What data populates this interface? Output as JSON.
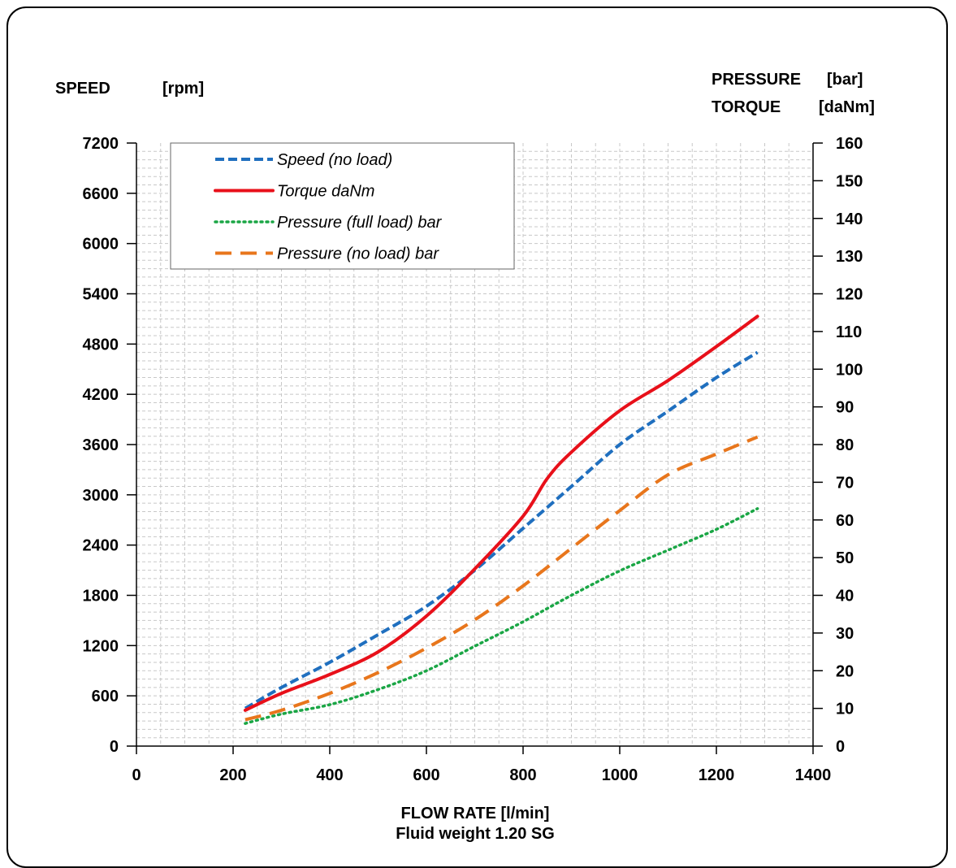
{
  "chart_data": {
    "type": "line",
    "left_axis": {
      "title": "SPEED",
      "unit": "[rpm]",
      "range": [
        0,
        7200
      ],
      "ticks": [
        0,
        600,
        1200,
        1800,
        2400,
        3000,
        3600,
        4200,
        4800,
        5400,
        6000,
        6600,
        7200
      ]
    },
    "right_axis": {
      "title_line1": "PRESSURE",
      "unit_line1": "[bar]",
      "title_line2": "TORQUE",
      "unit_line2": "[daNm]",
      "range": [
        0,
        160
      ],
      "ticks": [
        0,
        10,
        20,
        30,
        40,
        50,
        60,
        70,
        80,
        90,
        100,
        110,
        120,
        130,
        140,
        150,
        160
      ]
    },
    "x_axis": {
      "title": "FLOW RATE [l/min]",
      "subtitle": "Fluid weight  1.20  SG",
      "range": [
        0,
        1400
      ],
      "ticks": [
        0,
        200,
        400,
        600,
        800,
        1000,
        1200,
        1400
      ]
    },
    "grid": true,
    "legend_position": "top-left",
    "series": [
      {
        "name": "Speed (no load)",
        "axis": "left",
        "color": "#1f6fbf",
        "style": "dashed",
        "x": [
          225,
          300,
          400,
          500,
          600,
          700,
          800,
          900,
          1000,
          1100,
          1200,
          1285
        ],
        "y": [
          450,
          700,
          1000,
          1330,
          1670,
          2100,
          2600,
          3100,
          3600,
          4000,
          4400,
          4700
        ]
      },
      {
        "name": "Torque daNm",
        "axis": "right",
        "color": "#e8101a",
        "style": "solid",
        "x": [
          225,
          300,
          400,
          500,
          600,
          700,
          800,
          850,
          900,
          1000,
          1100,
          1200,
          1285
        ],
        "y": [
          9.5,
          14,
          19,
          25,
          34.5,
          47,
          61,
          71,
          78,
          89,
          97,
          106,
          114
        ]
      },
      {
        "name": "Pressure (full load) bar",
        "axis": "right",
        "color": "#1aa645",
        "style": "dotted",
        "x": [
          225,
          300,
          400,
          500,
          600,
          700,
          800,
          900,
          1000,
          1100,
          1200,
          1285
        ],
        "y": [
          6,
          8.5,
          11,
          15,
          20,
          26.5,
          33,
          40,
          46.5,
          52,
          57.5,
          63
        ]
      },
      {
        "name": "Pressure (no load) bar",
        "axis": "right",
        "color": "#e8761c",
        "style": "longdash",
        "x": [
          225,
          300,
          400,
          500,
          600,
          700,
          800,
          900,
          1000,
          1100,
          1200,
          1285
        ],
        "y": [
          7,
          9.5,
          14,
          19.5,
          26,
          33.5,
          42.5,
          52.5,
          62.5,
          72,
          77.5,
          82
        ]
      }
    ]
  }
}
